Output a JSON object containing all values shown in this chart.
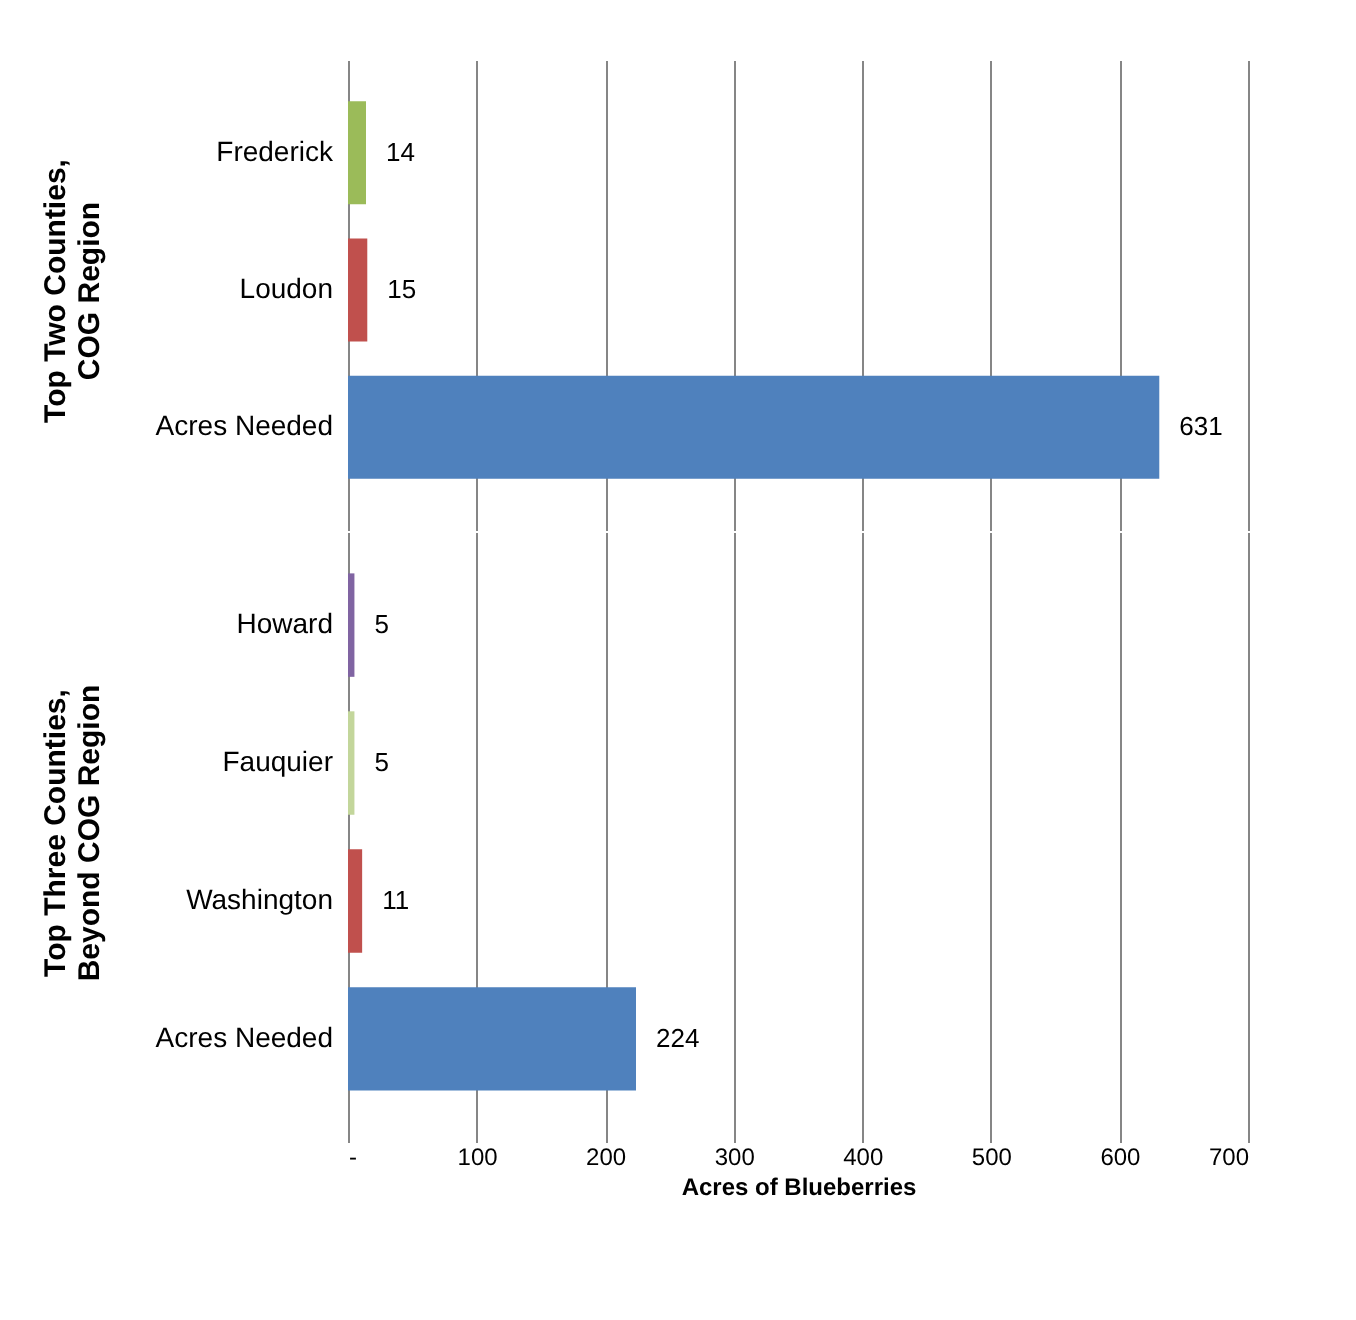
{
  "chart_data": [
    {
      "type": "bar",
      "orientation": "horizontal",
      "ylabel": "Top Two Counties, COG Region",
      "categories": [
        "Frederick",
        "Loudon",
        "Acres Needed"
      ],
      "values": [
        14,
        15,
        631
      ],
      "colors": [
        "#9bbb59",
        "#c0504d",
        "#4f81bd"
      ],
      "data_labels": true,
      "xlim": [
        0,
        700
      ],
      "xticks": [
        0,
        100,
        200,
        300,
        400,
        500,
        600,
        700
      ],
      "grid": "x",
      "tick_labels": "y"
    },
    {
      "type": "bar",
      "orientation": "horizontal",
      "ylabel": "Top Three Counties, Beyond COG Region",
      "xlabel": "Acres of Blueberries",
      "categories": [
        "Howard",
        "Fauquier",
        "Washington",
        "Acres Needed"
      ],
      "values": [
        5,
        5,
        11,
        224
      ],
      "colors": [
        "#8064a2",
        "#c3d69b",
        "#c0504d",
        "#4f81bd"
      ],
      "data_labels": true,
      "xlim": [
        0,
        700
      ],
      "xticks": [
        {
          "value": 0,
          "label": "-"
        },
        100,
        200,
        300,
        400,
        500,
        600,
        700
      ],
      "grid": "x"
    }
  ]
}
